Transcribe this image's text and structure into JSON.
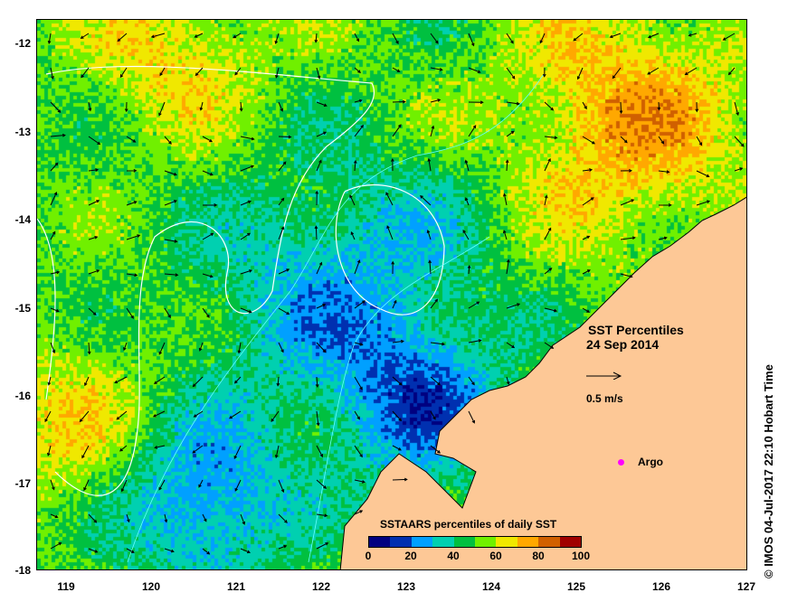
{
  "title": "SST Percentiles",
  "date": "24 Sep 2014",
  "credit": "© IMOS 04-Jul-2017 22:10 Hobart Time",
  "y_axis_labels": [
    "-12",
    "-13",
    "-14",
    "-15",
    "-16",
    "-17",
    "-18"
  ],
  "x_axis_labels": [
    "119",
    "120",
    "121",
    "122",
    "123",
    "124",
    "125",
    "126",
    "127"
  ],
  "scale_arrow_label": "0.5 m/s",
  "legend": {
    "argo_label": "Argo",
    "argo_color": "#ff00ff"
  },
  "colorbar": {
    "title": "SSTAARS percentiles of daily SST",
    "tick_labels": [
      "0",
      "20",
      "40",
      "60",
      "80",
      "100"
    ],
    "colors": [
      "#000080",
      "#0030b0",
      "#00a0ff",
      "#00d0b0",
      "#00c040",
      "#70f000",
      "#f0e800",
      "#ffa800",
      "#d06000",
      "#a00000"
    ]
  },
  "colors": {
    "land": "#fdc896",
    "contour": "#ffffff"
  }
}
